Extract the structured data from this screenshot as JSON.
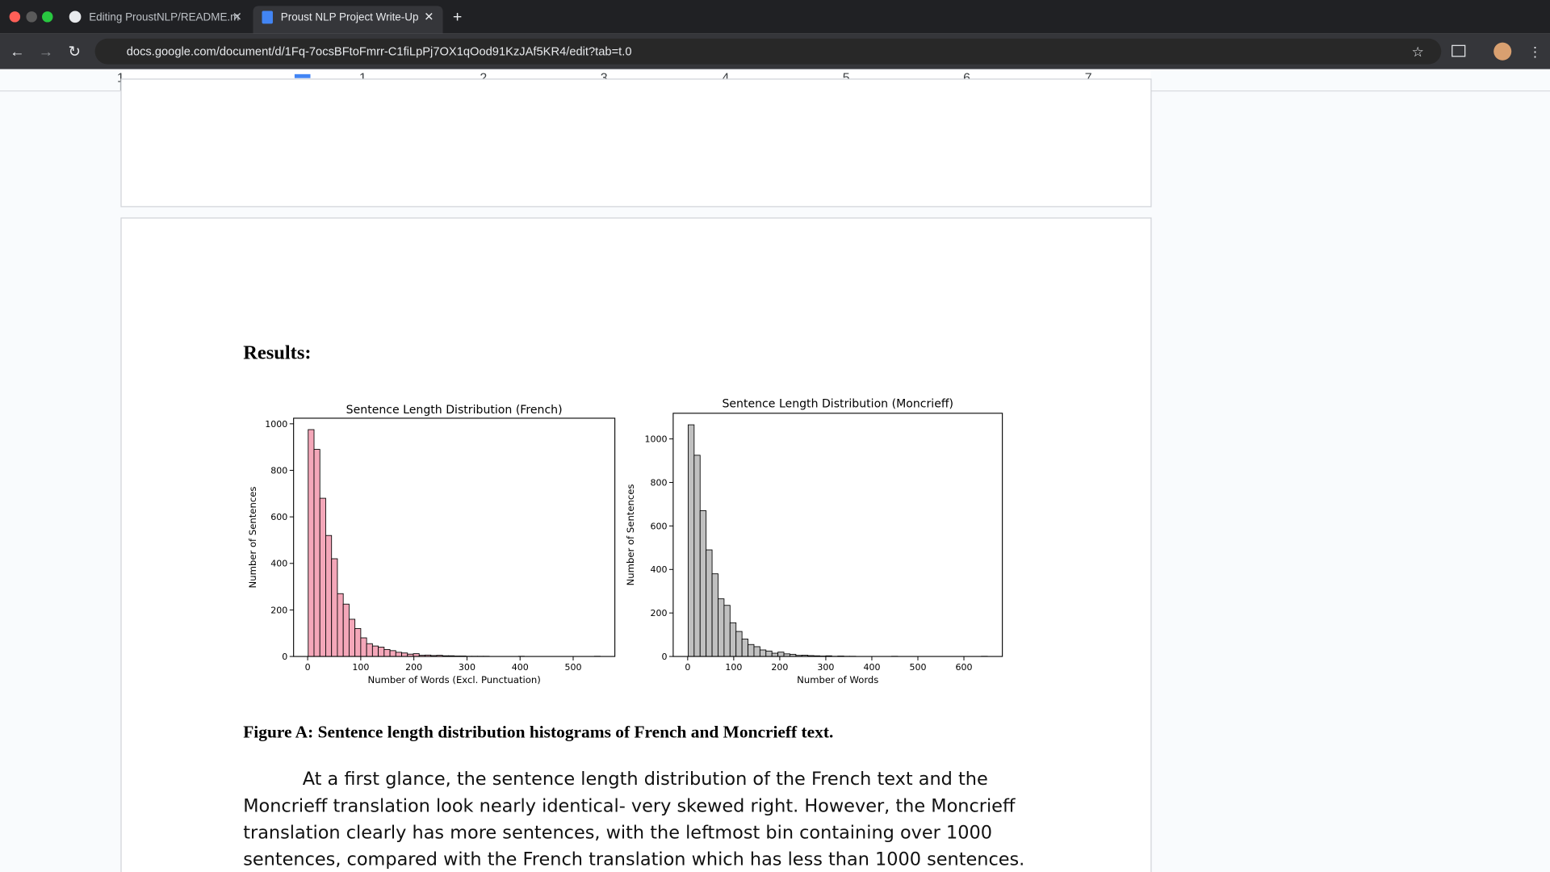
{
  "browser": {
    "tabs": [
      "Editing ProustNLP/README.m",
      "Proust NLP Project Write-Up"
    ],
    "url": "docs.google.com/document/d/1Fq-7ocsBFtoFmrr-C1fiLpPj7OX1qOod91KzJAf5KR4/edit?tab=t.0"
  },
  "ruler": [
    "1",
    "1",
    "2",
    "3",
    "4",
    "5",
    "6",
    "7"
  ],
  "document": {
    "heading": "Results:",
    "caption": "Figure A: Sentence length distribution histograms of French and Moncrieff text.",
    "paragraph": "At a first glance, the sentence length distribution of the French text and the Moncrieff translation look nearly identical- very skewed right. However, the Moncrieff translation clearly has more sentences, with the leftmost bin containing over 1000 sentences, compared with the French translation which has less than 1000 sentences."
  },
  "chart_data": [
    {
      "type": "histogram",
      "title": "Sentence Length Distribution (French)",
      "x_label": "Number of Words (Excl. Punctuation)",
      "y_label": "Number of Sentences",
      "bins": [
        1,
        12,
        23,
        34,
        45,
        56,
        67,
        78,
        89,
        100,
        111,
        122,
        133,
        144,
        155,
        166,
        177,
        188,
        199,
        210,
        221,
        232,
        243,
        254,
        265,
        276,
        287,
        298,
        309,
        320,
        331,
        342,
        353,
        364,
        375,
        386,
        397,
        408,
        419,
        430,
        441,
        452,
        463,
        474,
        485,
        496,
        507,
        518,
        529,
        540,
        551
      ],
      "values": [
        975,
        890,
        680,
        520,
        420,
        270,
        225,
        160,
        120,
        80,
        55,
        45,
        40,
        30,
        25,
        18,
        15,
        10,
        12,
        5,
        6,
        4,
        5,
        3,
        3,
        2,
        2,
        1,
        1,
        1,
        1,
        0,
        0,
        0,
        0,
        0,
        1,
        0,
        0,
        0,
        0,
        0,
        0,
        0,
        0,
        0,
        0,
        0,
        0,
        1
      ],
      "color": "#f4a7b9",
      "edgecolor": "#000000",
      "xlim": [
        -26.5,
        578.5
      ],
      "ylim": [
        0,
        1024
      ],
      "xticks": [
        0,
        100,
        200,
        300,
        400,
        500
      ],
      "yticks": [
        0,
        200,
        400,
        600,
        800,
        1000
      ]
    },
    {
      "type": "histogram",
      "title": "Sentence Length Distribution (Moncrieff)",
      "x_label": "Number of Words",
      "y_label": "Number of Sentences",
      "bins": [
        1,
        14,
        27,
        40,
        53,
        66,
        79,
        92,
        105,
        118,
        131,
        144,
        157,
        170,
        183,
        196,
        209,
        222,
        235,
        248,
        261,
        274,
        287,
        300,
        313,
        326,
        339,
        352,
        365,
        378,
        391,
        404,
        417,
        430,
        443,
        456,
        469,
        482,
        495,
        508,
        521,
        534,
        547,
        560,
        573,
        586,
        599,
        612,
        625,
        638,
        651
      ],
      "values": [
        1065,
        925,
        670,
        490,
        380,
        265,
        235,
        155,
        115,
        80,
        55,
        45,
        30,
        25,
        15,
        20,
        12,
        10,
        5,
        6,
        4,
        3,
        2,
        3,
        1,
        2,
        1,
        1,
        0,
        0,
        0,
        0,
        0,
        0,
        1,
        0,
        0,
        0,
        0,
        0,
        0,
        0,
        0,
        0,
        0,
        0,
        0,
        0,
        0,
        1
      ],
      "color": "#c0c0c0",
      "edgecolor": "#000000",
      "xlim": [
        -31.5,
        683.5
      ],
      "ylim": [
        0,
        1118
      ],
      "xticks": [
        0,
        100,
        200,
        300,
        400,
        500,
        600
      ],
      "yticks": [
        0,
        200,
        400,
        600,
        800,
        1000
      ]
    }
  ]
}
